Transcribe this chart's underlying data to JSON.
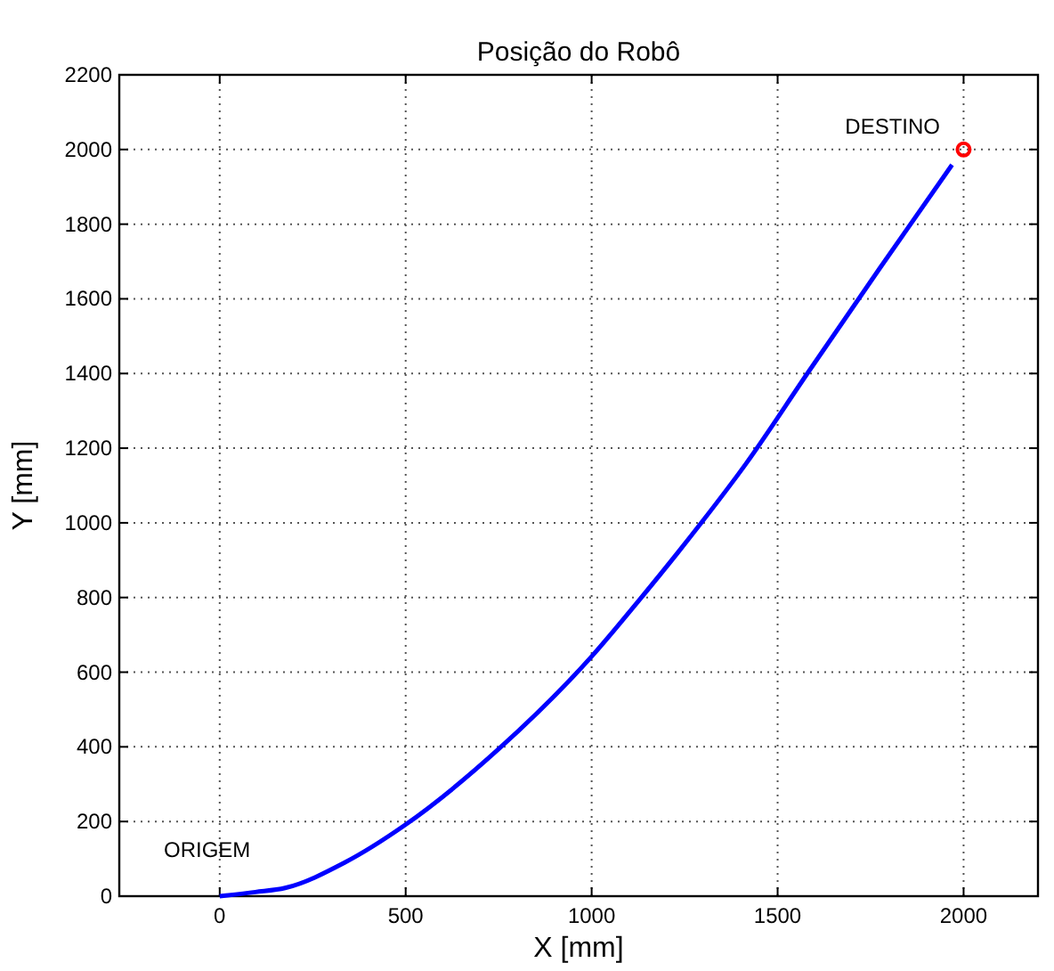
{
  "chart_data": {
    "type": "line",
    "title": "Posição do Robô",
    "xlabel": "X [mm]",
    "ylabel": "Y [mm]",
    "xlim": [
      -270,
      2200
    ],
    "ylim": [
      0,
      2200
    ],
    "xticks": [
      0,
      500,
      1000,
      1500,
      2000
    ],
    "yticks": [
      0,
      200,
      400,
      600,
      800,
      1000,
      1200,
      1400,
      1600,
      1800,
      2000,
      2200
    ],
    "grid": true,
    "annotations": [
      "ORIGEM",
      "DESTINO"
    ],
    "series": [
      {
        "color": "#0000ff",
        "line_style": "solid",
        "x": [
          0,
          96,
          176,
          336,
          496,
          751,
          999,
          1127,
          1294,
          1414,
          1582,
          1774,
          1969
        ],
        "values": [
          0,
          11,
          22,
          90,
          189,
          395,
          641,
          792,
          999,
          1157,
          1403,
          1681,
          1959
        ]
      },
      {
        "type": "scatter",
        "color": "#ff0000",
        "marker": "circle",
        "x": [
          2000
        ],
        "values": [
          2000
        ]
      }
    ]
  }
}
